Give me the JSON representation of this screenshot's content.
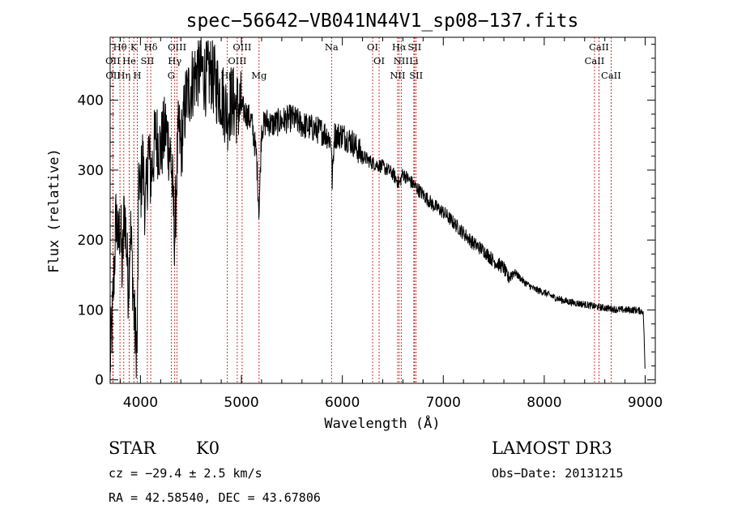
{
  "chart_data": {
    "type": "line",
    "title": "spec−56642−VB041N44V1_sp08−137.fits",
    "xlabel": "Wavelength (Å)",
    "ylabel": "Flux (relative)",
    "xlim": [
      3700,
      9100
    ],
    "ylim": [
      -5,
      490
    ],
    "xticks": [
      4000,
      5000,
      6000,
      7000,
      8000,
      9000
    ],
    "yticks": [
      0,
      100,
      200,
      300,
      400
    ],
    "series": [
      {
        "name": "spectrum",
        "anchors_x": [
          3700,
          3720,
          3740,
          3760,
          3780,
          3800,
          3820,
          3840,
          3860,
          3880,
          3900,
          3920,
          3935,
          3950,
          3968,
          3985,
          4000,
          4020,
          4050,
          4080,
          4101,
          4120,
          4150,
          4200,
          4250,
          4300,
          4320,
          4340,
          4360,
          4380,
          4400,
          4450,
          4500,
          4550,
          4600,
          4650,
          4700,
          4750,
          4800,
          4861,
          4900,
          4950,
          5000,
          5050,
          5100,
          5150,
          5175,
          5200,
          5250,
          5300,
          5400,
          5500,
          5600,
          5700,
          5800,
          5850,
          5890,
          5900,
          5920,
          6000,
          6100,
          6200,
          6300,
          6400,
          6500,
          6563,
          6600,
          6700,
          6800,
          6900,
          7000,
          7100,
          7200,
          7300,
          7400,
          7500,
          7600,
          7640,
          7700,
          7800,
          7900,
          8000,
          8100,
          8200,
          8300,
          8400,
          8500,
          8600,
          8700,
          8800,
          8900,
          8980,
          8990,
          9000
        ],
        "anchors_y": [
          25,
          80,
          160,
          240,
          190,
          230,
          150,
          250,
          200,
          130,
          220,
          160,
          100,
          60,
          50,
          300,
          260,
          320,
          240,
          330,
          290,
          310,
          350,
          330,
          360,
          320,
          270,
          200,
          300,
          360,
          330,
          400,
          420,
          440,
          445,
          430,
          440,
          420,
          410,
          380,
          400,
          390,
          390,
          380,
          370,
          320,
          240,
          360,
          370,
          365,
          370,
          375,
          365,
          360,
          355,
          350,
          340,
          280,
          350,
          350,
          340,
          320,
          310,
          305,
          295,
          280,
          295,
          280,
          265,
          250,
          240,
          225,
          210,
          195,
          185,
          170,
          160,
          145,
          155,
          140,
          130,
          125,
          118,
          113,
          110,
          108,
          105,
          103,
          101,
          100,
          100,
          98,
          60,
          5
        ]
      }
    ],
    "line_groups": [
      {
        "labels": [
          "Hθ",
          "OII",
          "OII"
        ],
        "wavelengths": [
          3797,
          3727,
          3729
        ]
      },
      {
        "labels": [
          "K",
          "He",
          "Hη"
        ],
        "wavelengths": [
          3934,
          3889,
          3835
        ]
      },
      {
        "labels": [
          "Hδ",
          "SII",
          "H"
        ],
        "wavelengths": [
          4102,
          4069,
          3969
        ]
      },
      {
        "labels": [
          "OIII",
          "Hγ",
          "G"
        ],
        "wavelengths": [
          4363,
          4340,
          4305
        ]
      },
      {
        "labels": [
          "OIII",
          "OIII",
          "Hβ",
          "Mg"
        ],
        "wavelengths": [
          5007,
          4959,
          4861,
          5175
        ]
      },
      {
        "labels": [
          "Na"
        ],
        "wavelengths": [
          5893
        ]
      },
      {
        "labels": [
          "OI",
          "OI"
        ],
        "wavelengths": [
          6300,
          6364
        ]
      },
      {
        "labels": [
          "Hα",
          "NII",
          "NII"
        ],
        "wavelengths": [
          6563,
          6583,
          6548
        ]
      },
      {
        "labels": [
          "SII",
          "Li",
          "SII"
        ],
        "wavelengths": [
          6716,
          6708,
          6731
        ]
      },
      {
        "labels": [
          "CaII",
          "CaII",
          "CaII"
        ],
        "wavelengths": [
          8542,
          8498,
          8662
        ]
      }
    ],
    "line_color": "#c00000"
  },
  "info": {
    "class": "STAR",
    "subclass": "K0",
    "survey": "LAMOST DR3",
    "cz": "cz = −29.4 ± 2.5 km/s",
    "obsdate": "Obs−Date: 20131215",
    "coords": "RA =  42.58540, DEC =  43.67806"
  }
}
